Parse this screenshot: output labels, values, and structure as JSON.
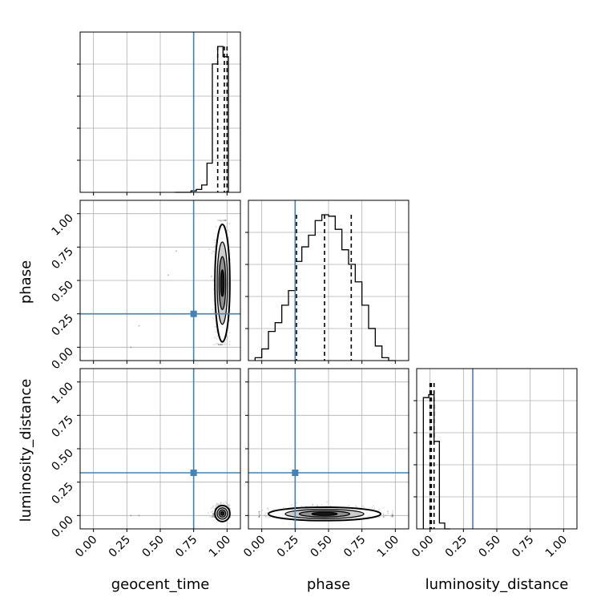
{
  "chart_data": {
    "type": "corner",
    "parameters": [
      "geocent_time",
      "phase",
      "luminosity_distance"
    ],
    "tick_labels": [
      "0.00",
      "0.25",
      "0.50",
      "0.75",
      "1.00"
    ],
    "axis_range": [
      -0.1,
      1.1
    ],
    "truth": {
      "geocent_time": 0.75,
      "phase": 0.25,
      "luminosity_distance": 0.32
    },
    "truth_color": "#4682b4",
    "grid": true,
    "histograms": {
      "geocent_time": {
        "bin_edges": [
          0.61,
          0.65,
          0.69,
          0.73,
          0.77,
          0.81,
          0.85,
          0.89,
          0.93,
          0.97,
          1.01
        ],
        "counts": [
          0,
          0,
          0,
          0.01,
          0.02,
          0.05,
          0.2,
          0.88,
          1.0,
          0.93
        ],
        "quantiles": [
          0.93,
          0.98,
          1.0
        ]
      },
      "phase": {
        "bin_edges": [
          -0.05,
          0.0,
          0.05,
          0.1,
          0.15,
          0.2,
          0.25,
          0.3,
          0.35,
          0.4,
          0.45,
          0.5,
          0.55,
          0.6,
          0.65,
          0.7,
          0.75,
          0.8,
          0.85,
          0.9,
          0.95,
          1.0
        ],
        "counts": [
          0.02,
          0.08,
          0.2,
          0.26,
          0.38,
          0.48,
          0.68,
          0.78,
          0.86,
          0.96,
          1.0,
          0.99,
          0.9,
          0.76,
          0.66,
          0.54,
          0.38,
          0.22,
          0.1,
          0.02,
          0.0
        ],
        "quantiles": [
          0.26,
          0.47,
          0.67
        ]
      },
      "luminosity_distance": {
        "bin_edges": [
          -0.05,
          -0.01,
          0.03,
          0.07,
          0.11,
          0.15
        ],
        "counts": [
          0.9,
          0.92,
          0.6,
          0.04,
          0.0
        ],
        "quantiles": [
          0.0,
          0.01,
          0.03
        ]
      }
    },
    "scatter_2d": [
      {
        "x_param": "geocent_time",
        "y_param": "phase",
        "center": [
          0.965,
          0.48
        ],
        "spread": [
          0.028,
          0.22
        ],
        "y_clip": [
          0.02,
          0.95
        ],
        "outliers": [
          [
            0.28,
            0.0
          ],
          [
            0.34,
            0.16
          ],
          [
            0.56,
            0.54
          ],
          [
            0.62,
            0.72
          ]
        ]
      },
      {
        "x_param": "geocent_time",
        "y_param": "luminosity_distance",
        "center": [
          0.965,
          0.015
        ],
        "spread": [
          0.028,
          0.03
        ],
        "y_clip": [
          -0.01,
          0.12
        ],
        "outliers": [
          [
            0.28,
            0.0
          ],
          [
            0.34,
            0.0
          ]
        ]
      },
      {
        "x_param": "phase",
        "y_param": "luminosity_distance",
        "center": [
          0.47,
          0.012
        ],
        "spread": [
          0.21,
          0.025
        ],
        "y_clip": [
          -0.01,
          0.15
        ],
        "outliers": []
      }
    ]
  }
}
